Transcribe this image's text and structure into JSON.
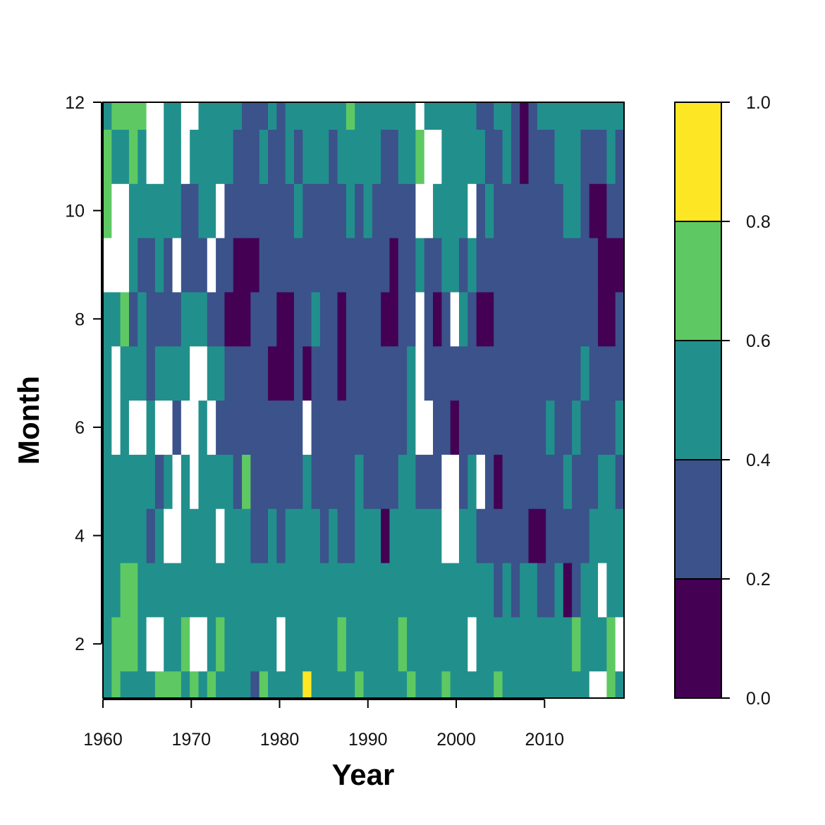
{
  "chart_data": {
    "type": "heatmap",
    "subtype": "filled-contour",
    "title": "",
    "xlabel": "Year",
    "ylabel": "Month",
    "xlim": [
      1960,
      2019
    ],
    "ylim": [
      1,
      12
    ],
    "x_ticks": [
      "1960",
      "1970",
      "1980",
      "1990",
      "2000",
      "2010"
    ],
    "y_ticks": [
      "2",
      "4",
      "6",
      "8",
      "10",
      "12"
    ],
    "legend_position": "right",
    "colorbar": {
      "levels": [
        0.0,
        0.2,
        0.4,
        0.6,
        0.8,
        1.0
      ],
      "tick_labels": [
        "0.0",
        "0.2",
        "0.4",
        "0.6",
        "0.8",
        "1.0"
      ],
      "colors": [
        "#440154",
        "#3b528b",
        "#21908c",
        "#5ec962",
        "#fde725"
      ]
    },
    "missing_color": "#ffffff",
    "grid": false,
    "years": [
      1960,
      1961,
      1962,
      1963,
      1964,
      1965,
      1966,
      1967,
      1968,
      1969,
      1970,
      1971,
      1972,
      1973,
      1974,
      1975,
      1976,
      1977,
      1978,
      1979,
      1980,
      1981,
      1982,
      1983,
      1984,
      1985,
      1986,
      1987,
      1988,
      1989,
      1990,
      1991,
      1992,
      1993,
      1994,
      1995,
      1996,
      1997,
      1998,
      1999,
      2000,
      2001,
      2002,
      2003,
      2004,
      2005,
      2006,
      2007,
      2008,
      2009,
      2010,
      2011,
      2012,
      2013,
      2014,
      2015,
      2016,
      2017,
      2018,
      2019
    ],
    "months": [
      1,
      2,
      3,
      4,
      5,
      6,
      7,
      8,
      9,
      10,
      11,
      12
    ],
    "values_by_year": [
      [
        0.55,
        0.5,
        0.45,
        0.45,
        0.5,
        0.45,
        0.4,
        0.45,
        null,
        0.65,
        0.6,
        0.55
      ],
      [
        0.6,
        0.65,
        0.55,
        0.5,
        0.45,
        null,
        null,
        0.5,
        null,
        null,
        0.5,
        0.6
      ],
      [
        0.55,
        0.7,
        0.62,
        0.5,
        0.45,
        0.4,
        0.5,
        0.7,
        null,
        null,
        0.55,
        0.65
      ],
      [
        0.5,
        0.65,
        0.6,
        0.55,
        0.5,
        null,
        0.45,
        0.35,
        0.45,
        0.5,
        0.62,
        0.7
      ],
      [
        0.45,
        0.55,
        0.5,
        0.5,
        0.45,
        null,
        0.45,
        0.4,
        0.35,
        0.45,
        0.55,
        0.6
      ],
      [
        0.55,
        null,
        0.45,
        0.35,
        0.5,
        0.45,
        0.35,
        0.3,
        0.35,
        0.45,
        null,
        null
      ],
      [
        0.6,
        null,
        0.55,
        0.45,
        0.35,
        null,
        0.45,
        0.35,
        0.4,
        0.5,
        null,
        null
      ],
      [
        0.65,
        0.55,
        0.5,
        null,
        0.45,
        null,
        0.4,
        0.3,
        0.35,
        0.45,
        0.55,
        0.5
      ],
      [
        0.6,
        0.5,
        0.45,
        null,
        null,
        0.35,
        0.4,
        0.35,
        null,
        0.4,
        0.5,
        0.45
      ],
      [
        0.55,
        0.6,
        0.55,
        0.5,
        0.45,
        null,
        0.45,
        0.4,
        0.3,
        0.35,
        null,
        null
      ],
      [
        0.6,
        null,
        0.5,
        0.45,
        null,
        null,
        null,
        0.45,
        0.35,
        0.3,
        0.45,
        null
      ],
      [
        0.5,
        null,
        0.55,
        0.5,
        0.4,
        0.45,
        null,
        0.4,
        0.35,
        0.4,
        0.5,
        0.45
      ],
      [
        0.6,
        0.5,
        0.45,
        0.4,
        0.45,
        null,
        0.4,
        0.3,
        null,
        0.45,
        0.55,
        0.5
      ],
      [
        0.55,
        0.6,
        0.5,
        null,
        0.5,
        0.35,
        0.45,
        0.3,
        0.35,
        null,
        0.45,
        0.5
      ],
      [
        0.5,
        0.45,
        0.55,
        0.45,
        0.4,
        0.3,
        0.25,
        0.15,
        0.3,
        0.35,
        0.4,
        0.55
      ],
      [
        0.45,
        0.5,
        0.45,
        0.4,
        0.35,
        0.3,
        0.2,
        0.1,
        0.15,
        0.3,
        0.35,
        0.45
      ],
      [
        0.4,
        0.45,
        0.5,
        0.45,
        0.6,
        0.25,
        0.3,
        0.15,
        0.1,
        0.25,
        0.3,
        0.35
      ],
      [
        0.35,
        0.4,
        0.45,
        0.35,
        0.3,
        0.3,
        0.35,
        0.2,
        0.15,
        0.3,
        0.3,
        0.35
      ],
      [
        0.75,
        0.45,
        0.4,
        0.35,
        0.3,
        0.25,
        0.25,
        0.3,
        0.25,
        0.3,
        0.4,
        0.3
      ],
      [
        0.5,
        0.5,
        0.45,
        0.4,
        0.35,
        0.3,
        0.1,
        0.2,
        0.3,
        0.35,
        0.35,
        0.4
      ],
      [
        0.45,
        null,
        0.4,
        0.3,
        0.35,
        0.3,
        0.15,
        0.1,
        0.25,
        0.3,
        0.35,
        0.3
      ],
      [
        0.4,
        0.45,
        0.5,
        0.45,
        0.3,
        0.25,
        0.1,
        0.15,
        0.3,
        0.35,
        0.4,
        0.45
      ],
      [
        0.45,
        0.5,
        0.45,
        0.4,
        0.35,
        0.3,
        0.2,
        0.25,
        0.35,
        0.4,
        0.35,
        0.4
      ],
      [
        0.85,
        0.55,
        0.5,
        0.45,
        0.4,
        null,
        0.15,
        0.3,
        0.35,
        0.3,
        0.45,
        0.5
      ],
      [
        0.55,
        0.5,
        0.45,
        0.4,
        0.35,
        0.3,
        0.35,
        0.4,
        0.3,
        0.35,
        0.4,
        0.45
      ],
      [
        0.5,
        0.45,
        0.4,
        0.35,
        0.3,
        0.35,
        0.3,
        0.25,
        0.2,
        0.3,
        0.4,
        0.5
      ],
      [
        0.45,
        0.55,
        0.5,
        0.4,
        0.35,
        0.3,
        0.25,
        0.3,
        0.35,
        0.25,
        0.35,
        0.45
      ],
      [
        0.55,
        0.6,
        0.45,
        0.35,
        0.3,
        0.25,
        0.15,
        0.1,
        0.3,
        0.35,
        0.45,
        0.55
      ],
      [
        0.5,
        0.45,
        0.4,
        0.35,
        0.3,
        0.35,
        0.3,
        0.25,
        0.35,
        0.45,
        0.55,
        0.65
      ],
      [
        0.6,
        0.55,
        0.5,
        0.45,
        0.4,
        0.35,
        0.3,
        0.25,
        0.3,
        0.35,
        0.45,
        0.5
      ],
      [
        0.55,
        0.5,
        0.45,
        0.4,
        0.35,
        0.3,
        0.35,
        0.3,
        0.3,
        0.4,
        0.5,
        0.55
      ],
      [
        0.5,
        0.45,
        0.4,
        0.45,
        0.35,
        0.3,
        0.25,
        0.2,
        0.3,
        0.35,
        0.45,
        0.5
      ],
      [
        0.45,
        0.55,
        0.5,
        0.15,
        0.3,
        0.25,
        0.35,
        0.15,
        0.25,
        0.3,
        0.35,
        0.4
      ],
      [
        0.5,
        0.55,
        0.45,
        0.4,
        0.35,
        0.3,
        0.3,
        0.1,
        0.15,
        0.25,
        0.3,
        0.5
      ],
      [
        0.55,
        0.6,
        0.5,
        0.45,
        0.4,
        0.35,
        0.3,
        0.2,
        0.25,
        0.3,
        0.4,
        0.55
      ],
      [
        0.65,
        0.5,
        0.45,
        0.45,
        0.4,
        0.5,
        0.4,
        0.3,
        0.25,
        0.35,
        0.45,
        0.5
      ],
      [
        0.5,
        0.45,
        0.5,
        0.55,
        0.35,
        null,
        null,
        null,
        0.45,
        null,
        0.6,
        null
      ],
      [
        0.55,
        0.5,
        0.45,
        0.45,
        0.3,
        null,
        0.35,
        0.3,
        0.35,
        null,
        null,
        0.5
      ],
      [
        0.5,
        0.45,
        0.4,
        0.4,
        0.35,
        0.35,
        0.35,
        0.15,
        0.3,
        0.4,
        null,
        0.45
      ],
      [
        0.6,
        0.55,
        0.5,
        null,
        null,
        0.25,
        0.3,
        0.35,
        0.4,
        0.5,
        0.45,
        0.4
      ],
      [
        0.45,
        0.55,
        0.5,
        null,
        null,
        0.1,
        0.3,
        null,
        0.45,
        0.55,
        0.5,
        0.45
      ],
      [
        0.5,
        0.5,
        0.45,
        0.4,
        0.35,
        0.3,
        0.35,
        0.4,
        0.35,
        0.4,
        0.45,
        0.5
      ],
      [
        0.55,
        null,
        0.5,
        0.45,
        0.4,
        0.35,
        0.3,
        0.35,
        0.4,
        null,
        0.45,
        0.4
      ],
      [
        0.45,
        0.5,
        0.45,
        0.35,
        null,
        0.3,
        0.25,
        0.15,
        0.3,
        0.35,
        0.4,
        0.35
      ],
      [
        0.55,
        0.5,
        0.4,
        0.35,
        0.3,
        0.25,
        0.3,
        0.15,
        0.35,
        0.4,
        0.35,
        0.3
      ],
      [
        0.6,
        0.45,
        0.35,
        0.3,
        0.1,
        0.2,
        0.3,
        0.25,
        0.35,
        0.3,
        0.35,
        0.4
      ],
      [
        0.55,
        0.5,
        0.4,
        0.35,
        0.3,
        0.35,
        0.3,
        0.2,
        0.25,
        0.35,
        0.4,
        0.45
      ],
      [
        0.45,
        0.4,
        0.35,
        0.3,
        0.35,
        0.3,
        0.35,
        0.3,
        0.2,
        0.35,
        0.3,
        0.35
      ],
      [
        0.5,
        0.45,
        0.4,
        0.35,
        0.3,
        0.35,
        0.3,
        0.25,
        0.35,
        0.2,
        0.15,
        0.1
      ],
      [
        0.55,
        0.5,
        0.45,
        0.1,
        0.35,
        0.3,
        0.35,
        0.3,
        0.3,
        0.35,
        0.35,
        0.3
      ],
      [
        0.45,
        0.4,
        0.35,
        0.1,
        0.3,
        0.35,
        0.3,
        0.35,
        0.35,
        0.3,
        0.35,
        0.4
      ],
      [
        0.5,
        0.45,
        0.35,
        0.3,
        0.35,
        0.4,
        0.35,
        0.3,
        0.3,
        0.25,
        0.35,
        0.45
      ],
      [
        0.55,
        0.45,
        0.4,
        0.3,
        0.35,
        0.3,
        0.35,
        0.3,
        0.35,
        0.3,
        0.45,
        0.55
      ],
      [
        0.5,
        0.4,
        0.15,
        0.3,
        0.4,
        0.35,
        0.3,
        0.35,
        0.3,
        0.4,
        0.55,
        0.5
      ],
      [
        0.45,
        0.65,
        0.35,
        0.3,
        0.35,
        0.4,
        0.3,
        0.35,
        0.35,
        0.45,
        0.5,
        0.45
      ],
      [
        0.4,
        0.5,
        0.45,
        0.35,
        0.3,
        0.35,
        0.4,
        0.35,
        0.3,
        0.2,
        0.35,
        0.45
      ],
      [
        null,
        0.45,
        0.5,
        0.4,
        0.35,
        0.3,
        0.35,
        0.3,
        0.2,
        0.1,
        0.35,
        0.5
      ],
      [
        null,
        0.55,
        null,
        0.45,
        0.4,
        0.35,
        0.3,
        0.15,
        0.1,
        0.15,
        0.3,
        0.55
      ],
      [
        0.65,
        0.6,
        0.5,
        0.45,
        0.4,
        0.35,
        0.3,
        0.1,
        0.15,
        0.2,
        0.4,
        0.5
      ],
      [
        0.55,
        null,
        0.45,
        0.4,
        0.35,
        0.4,
        0.35,
        0.2,
        0.15,
        0.25,
        0.35,
        0.45
      ]
    ]
  }
}
